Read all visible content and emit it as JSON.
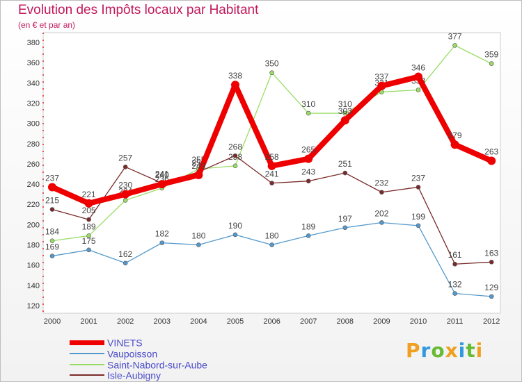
{
  "chart_data": {
    "type": "line",
    "title": "Evolution des Impôts locaux par Habitant",
    "subtitle": "(en € et par an)",
    "categories": [
      "2000",
      "2001",
      "2002",
      "2003",
      "2004",
      "2005",
      "2006",
      "2007",
      "2008",
      "2009",
      "2010",
      "2011",
      "2012"
    ],
    "ylim": [
      120,
      380
    ],
    "yticks": [
      120,
      140,
      160,
      180,
      200,
      220,
      240,
      260,
      280,
      300,
      320,
      340,
      360,
      380
    ],
    "grid": false,
    "legend_position": "bottom-left",
    "series": [
      {
        "name": "Saint-Nabord-sur-Aube",
        "color": "#99dd66",
        "values": [
          184,
          189,
          224,
          236,
          255,
          258,
          350,
          310,
          310,
          331,
          333,
          377,
          359
        ]
      },
      {
        "name": "Isle-Aubigny",
        "color": "#7a2a2a",
        "values": [
          215,
          205,
          257,
          241,
          252,
          268,
          241,
          243,
          251,
          232,
          237,
          161,
          163
        ]
      },
      {
        "name": "Vaupoisson",
        "color": "#5599cc",
        "values": [
          169,
          175,
          162,
          182,
          180,
          190,
          180,
          189,
          197,
          202,
          199,
          132,
          129
        ]
      },
      {
        "name": "VINETS",
        "color": "#ee0000",
        "values": [
          237,
          221,
          230,
          240,
          249,
          338,
          258,
          265,
          303,
          337,
          346,
          279,
          263
        ]
      }
    ],
    "legend_order": [
      "VINETS",
      "Vaupoisson",
      "Saint-Nabord-sur-Aube",
      "Isle-Aubigny"
    ]
  },
  "logo": {
    "letters": [
      "P",
      "r",
      "o",
      "x",
      "i",
      "t",
      "i"
    ],
    "colors": [
      "#f0a020",
      "#3399dd",
      "#66bb33",
      "#f0a020",
      "#3399dd",
      "#66bb33",
      "#f0a020"
    ]
  }
}
